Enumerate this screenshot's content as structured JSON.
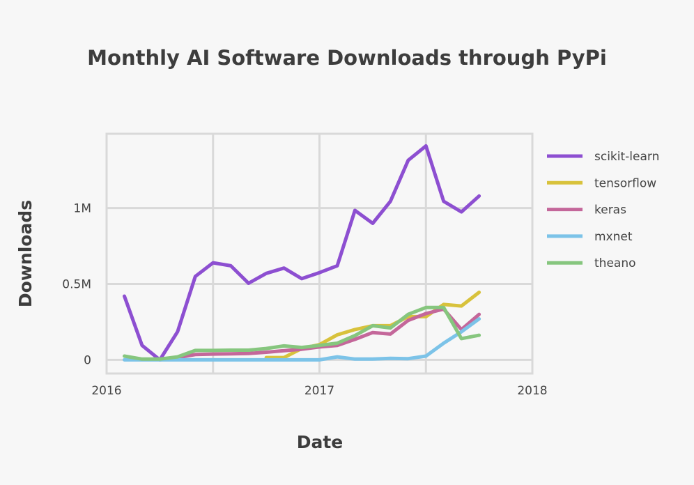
{
  "chart_data": {
    "type": "line",
    "title": "Monthly AI Software Downloads through PyPi",
    "xlabel": "Date",
    "ylabel": "Downloads",
    "x_ticks": [
      "2016",
      "2017",
      "2018"
    ],
    "y_ticks": [
      {
        "value": 0,
        "label": "0"
      },
      {
        "value": 500000,
        "label": "0.5M"
      },
      {
        "value": 1000000,
        "label": "1M"
      }
    ],
    "xlim": [
      "2016-01-01",
      "2018-01-01"
    ],
    "ylim": [
      -90000,
      1490000
    ],
    "grid": true,
    "legend_position": "right",
    "x": [
      "2016-02",
      "2016-03",
      "2016-04",
      "2016-05",
      "2016-06",
      "2016-07",
      "2016-08",
      "2016-09",
      "2016-10",
      "2016-11",
      "2016-12",
      "2017-01",
      "2017-02",
      "2017-03",
      "2017-04",
      "2017-05",
      "2017-06",
      "2017-07",
      "2017-08",
      "2017-09",
      "2017-10"
    ],
    "series": [
      {
        "name": "scikit-learn",
        "color": "#8d4fd1",
        "values": [
          420000,
          95000,
          0,
          185000,
          550000,
          640000,
          620000,
          505000,
          570000,
          605000,
          535000,
          575000,
          620000,
          985000,
          900000,
          1045000,
          1315000,
          1410000,
          1045000,
          975000,
          1080000
        ]
      },
      {
        "name": "tensorflow",
        "color": "#d8c23c",
        "values": [
          null,
          null,
          null,
          null,
          null,
          null,
          null,
          null,
          15000,
          15000,
          75000,
          100000,
          165000,
          200000,
          225000,
          225000,
          285000,
          285000,
          365000,
          355000,
          445000
        ]
      },
      {
        "name": "keras",
        "color": "#c4679a",
        "values": [
          null,
          null,
          0,
          15000,
          35000,
          38000,
          40000,
          42000,
          50000,
          60000,
          70000,
          85000,
          95000,
          135000,
          180000,
          170000,
          260000,
          305000,
          335000,
          200000,
          300000
        ]
      },
      {
        "name": "mxnet",
        "color": "#7cc3e8",
        "values": [
          0,
          0,
          0,
          0,
          0,
          0,
          0,
          0,
          0,
          0,
          0,
          0,
          20000,
          5000,
          5000,
          10000,
          8000,
          25000,
          110000,
          185000,
          270000
        ]
      },
      {
        "name": "theano",
        "color": "#86c67e",
        "values": [
          25000,
          5000,
          5000,
          20000,
          62000,
          62000,
          64000,
          64000,
          75000,
          92000,
          82000,
          95000,
          110000,
          160000,
          225000,
          210000,
          300000,
          345000,
          345000,
          140000,
          162000
        ]
      }
    ]
  }
}
